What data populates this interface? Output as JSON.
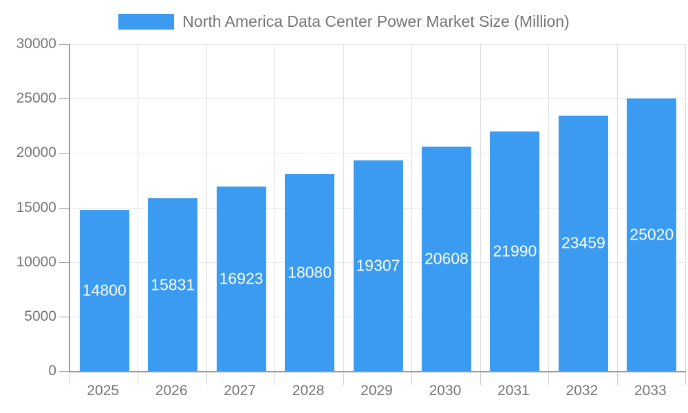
{
  "legend": {
    "label": "North America Data Center Power Market Size (Million)"
  },
  "colors": {
    "bar": "#3B9BF0",
    "bar_label": "#FFFFFF",
    "legend_text": "#757575",
    "axis_line": "#999999",
    "grid_horizontal": "#E8E8E8",
    "grid_vertical": "#DEDEDE",
    "x_tick": "#CCCCCC",
    "tick_text": "#757575"
  },
  "chart_data": {
    "type": "bar",
    "title": "North America Data Center Power Market Size (Million)",
    "categories": [
      "2025",
      "2026",
      "2027",
      "2028",
      "2029",
      "2030",
      "2031",
      "2032",
      "2033"
    ],
    "values": [
      14800,
      15831,
      16923,
      18080,
      19307,
      20608,
      21990,
      23459,
      25020
    ],
    "xlabel": "",
    "ylabel": "",
    "ylim": [
      0,
      30000
    ],
    "yticks": [
      0,
      5000,
      10000,
      15000,
      20000,
      25000,
      30000
    ],
    "grid": true,
    "legend_position": "top-center",
    "bar_labels": "inside-center"
  }
}
